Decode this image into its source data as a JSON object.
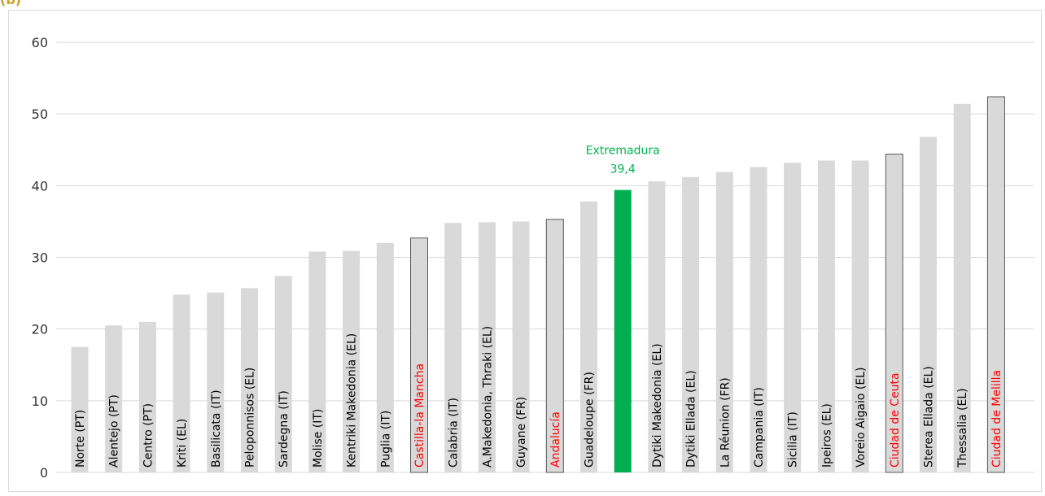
{
  "panel_label": "(b)",
  "chart_data": {
    "type": "bar",
    "ylim": [
      0,
      60
    ],
    "yticks": [
      0,
      10,
      20,
      30,
      40,
      50,
      60
    ],
    "grid": true,
    "colors": {
      "bar_default": "#d9d9d9",
      "bar_highlight": "#00b050",
      "label_default": "#000000",
      "label_red": "#ff0000",
      "annotation": "#00b050",
      "grid": "#d9d9d9"
    },
    "categories": [
      "Norte (PT)",
      "Alentejo  (PT)",
      "Centro (PT)",
      "Kriti (EL)",
      "Basilicata (IT)",
      "Peloponnisos (EL)",
      "Sardegna (IT)",
      "Molise (IT)",
      "Kentriki Makedonia (EL)",
      "Puglia (IT)",
      "Castilla-la Mancha",
      "Calabria (IT)",
      "A.Makedonia, Thraki (EL)",
      "Guyane (FR)",
      "Andalucía",
      "Guadeloupe (FR)",
      "Extremadura",
      "Dytiki Makedonia (EL)",
      "Dytiki Ellada (EL)",
      "La Réunion (FR)",
      "Campania (IT)",
      "Sicilia (IT)",
      "Ipeiros (EL)",
      "Voreio Aigaio (EL)",
      "Ciudad de Ceuta",
      "Sterea Ellada (EL)",
      "Thessalia (EL)",
      "Ciudad de Melilla"
    ],
    "values": [
      17.5,
      20.5,
      21.0,
      24.8,
      25.1,
      25.7,
      27.4,
      30.8,
      30.9,
      32.0,
      32.7,
      34.8,
      34.9,
      35.0,
      35.3,
      37.8,
      39.4,
      40.6,
      41.2,
      41.9,
      42.6,
      43.2,
      43.5,
      43.5,
      44.4,
      46.8,
      51.4,
      52.4
    ],
    "spanish_regions": [
      "Castilla-la Mancha",
      "Andalucía",
      "Ciudad de Ceuta",
      "Ciudad de Melilla"
    ],
    "highlight": {
      "category": "Extremadura",
      "label": "Extremadura",
      "value_label": "39,4"
    }
  }
}
